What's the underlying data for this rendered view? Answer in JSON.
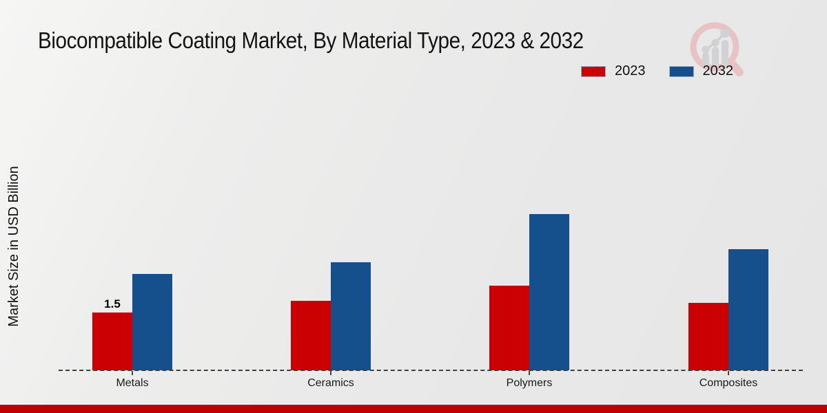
{
  "title": "Biocompatible Coating Market, By Material Type, 2023 & 2032",
  "y_axis_label": "Market Size in USD Billion",
  "chart_data": {
    "type": "bar",
    "title": "Biocompatible Coating Market, By Material Type, 2023 & 2032",
    "xlabel": "",
    "ylabel": "Market Size in USD Billion",
    "categories": [
      "Metals",
      "Ceramics",
      "Polymers",
      "Composites"
    ],
    "series": [
      {
        "name": "2023",
        "color": "#cb0002",
        "values": [
          1.5,
          1.8,
          2.2,
          1.75
        ]
      },
      {
        "name": "2032",
        "color": "#15508c",
        "values": [
          2.5,
          2.8,
          4.05,
          3.15
        ]
      }
    ],
    "data_labels": [
      {
        "category": "Metals",
        "series": "2023",
        "text": "1.5"
      }
    ],
    "units": "USD Billion",
    "legend_position": "top-right",
    "grid": false,
    "axis_style": "dashed-baseline",
    "ylim": [
      0,
      4.5
    ]
  },
  "colors": {
    "background": "#e9e9e9",
    "series_2023": "#cb0002",
    "series_2032": "#15508c",
    "baseline": "#3f3f3f",
    "bottom_strip": "#bf0000",
    "text": "#141414",
    "logo_pink": "#e7c3c6",
    "logo_gray": "#d2d2d4"
  }
}
